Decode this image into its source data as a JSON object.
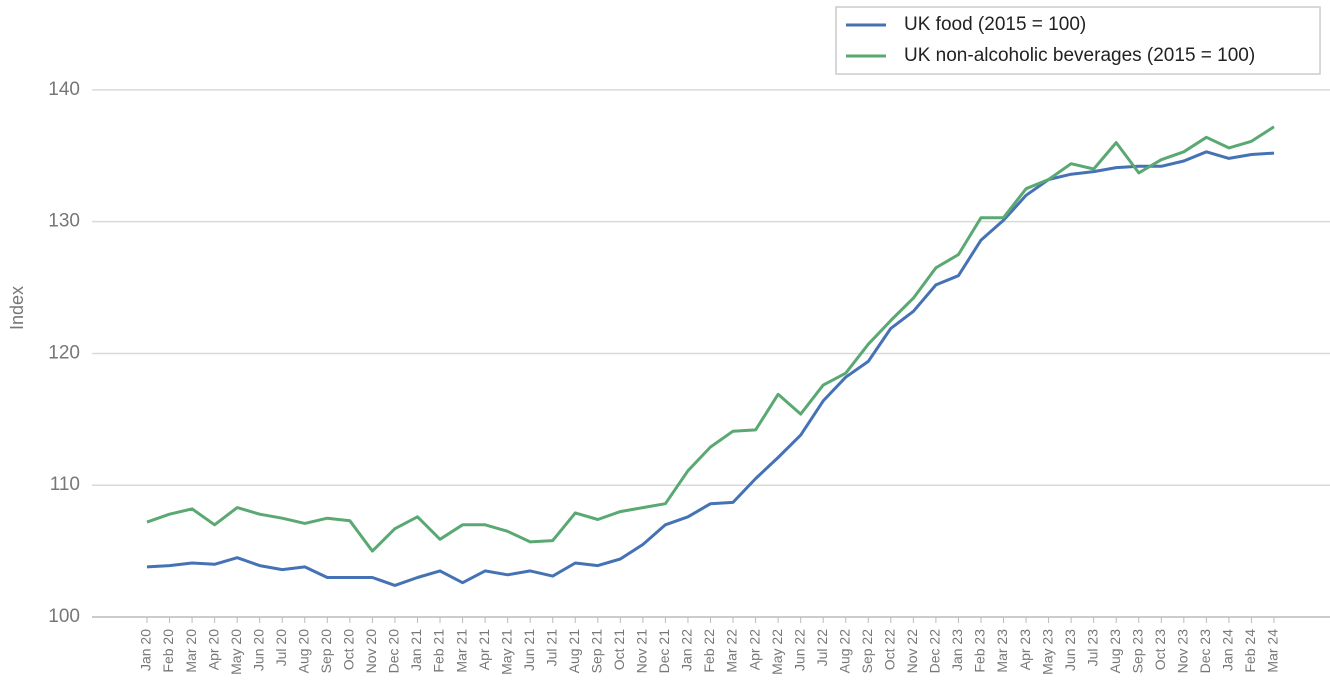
{
  "chart_data": {
    "type": "line",
    "y_label": "Index",
    "categories": [
      "Jan 20",
      "Feb 20",
      "Mar 20",
      "Apr 20",
      "May 20",
      "Jun 20",
      "Jul 20",
      "Aug 20",
      "Sep 20",
      "Oct 20",
      "Nov 20",
      "Dec 20",
      "Jan 21",
      "Feb 21",
      "Mar 21",
      "Apr 21",
      "May 21",
      "Jun 21",
      "Jul 21",
      "Aug 21",
      "Sep 21",
      "Oct 21",
      "Nov 21",
      "Dec 21",
      "Jan 22",
      "Feb 22",
      "Mar 22",
      "Apr 22",
      "May 22",
      "Jun 22",
      "Jul 22",
      "Aug 22",
      "Sep 22",
      "Oct 22",
      "Nov 22",
      "Dec 22",
      "Jan 23",
      "Feb 23",
      "Mar 23",
      "Apr 23",
      "May 23",
      "Jun 23",
      "Jul 23",
      "Aug 23",
      "Sep 23",
      "Oct 23",
      "Nov 23",
      "Dec 23",
      "Jan 24",
      "Feb 24",
      "Mar 24"
    ],
    "series": [
      {
        "name": "UK food (2015 = 100)",
        "color": "#4472b4",
        "values": [
          103.8,
          103.9,
          104.1,
          104.0,
          104.5,
          103.9,
          103.6,
          103.8,
          103.0,
          103.0,
          103.0,
          102.4,
          103.0,
          103.5,
          102.6,
          103.5,
          103.2,
          103.5,
          103.1,
          104.1,
          103.9,
          104.4,
          105.5,
          107.0,
          107.6,
          108.6,
          108.7,
          110.5,
          112.1,
          113.8,
          116.4,
          118.2,
          119.4,
          121.9,
          123.2,
          125.2,
          125.9,
          128.6,
          130.1,
          132.0,
          133.2,
          133.6,
          133.8,
          134.1,
          134.2,
          134.2,
          134.6,
          135.3,
          134.8,
          135.1,
          135.2
        ]
      },
      {
        "name": "UK non-alcoholic beverages (2015 = 100)",
        "color": "#5aa872",
        "values": [
          107.2,
          107.8,
          108.2,
          107.0,
          108.3,
          107.8,
          107.5,
          107.1,
          107.5,
          107.3,
          105.0,
          106.7,
          107.6,
          105.9,
          107.0,
          107.0,
          106.5,
          105.7,
          105.8,
          107.9,
          107.4,
          108.0,
          108.3,
          108.6,
          111.1,
          112.9,
          114.1,
          114.2,
          116.9,
          115.4,
          117.6,
          118.5,
          120.7,
          122.5,
          124.2,
          126.5,
          127.5,
          130.3,
          130.3,
          132.5,
          133.2,
          134.4,
          134.0,
          136.0,
          133.7,
          134.7,
          135.3,
          136.4,
          135.6,
          136.1,
          137.2
        ]
      }
    ],
    "ylim": [
      100,
      145
    ],
    "yticks": [
      100,
      110,
      120,
      130,
      140
    ],
    "grid": true,
    "legend": "top-right"
  }
}
